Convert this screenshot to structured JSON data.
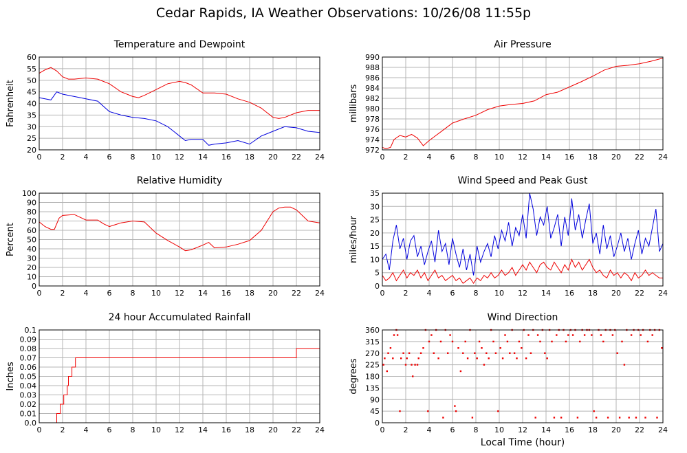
{
  "title": "Cedar Rapids, IA Weather Observations: 10/26/08 11:55p",
  "colors": {
    "red": "#ee0000",
    "blue": "#0000dd",
    "grid": "#b4b4b4"
  },
  "chart_data": [
    {
      "type": "line",
      "title": "Temperature and Dewpoint",
      "ylabel": "Fahrenheit",
      "xlim": [
        0,
        24
      ],
      "ylim": [
        20,
        60
      ],
      "xticks": [
        0,
        2,
        4,
        6,
        8,
        10,
        12,
        14,
        16,
        18,
        20,
        22,
        24
      ],
      "yticks": [
        20,
        25,
        30,
        35,
        40,
        45,
        50,
        55,
        60
      ],
      "grid": true,
      "series": [
        {
          "color": "#ee0000",
          "x": [
            0,
            0.5,
            1,
            1.5,
            2,
            2.5,
            3,
            4,
            5,
            6,
            7,
            8,
            8.5,
            9,
            10,
            11,
            12,
            12.5,
            13,
            14,
            15,
            16,
            17,
            18,
            19,
            20,
            20.5,
            21,
            22,
            23,
            24
          ],
          "y": [
            53,
            54.5,
            55.5,
            54,
            51.5,
            50.5,
            50.5,
            51,
            50.5,
            48.5,
            45,
            43,
            42.5,
            43.5,
            46,
            48.5,
            49.5,
            49,
            48,
            44.5,
            44.5,
            44,
            42,
            40.5,
            38,
            34,
            33.5,
            34,
            36,
            37,
            37
          ]
        },
        {
          "color": "#0000dd",
          "x": [
            0,
            0.5,
            1,
            1.5,
            2,
            3,
            4,
            5,
            6,
            7,
            8,
            9,
            10,
            11,
            11.5,
            12,
            12.5,
            13,
            14,
            14.5,
            15,
            16,
            17,
            18,
            19,
            20,
            21,
            22,
            23,
            24
          ],
          "y": [
            42.5,
            42,
            41.5,
            45,
            44,
            43,
            42,
            41,
            36.5,
            35,
            34,
            33.5,
            32.5,
            30,
            28,
            26,
            24,
            24.5,
            24.5,
            22,
            22.5,
            23,
            24,
            22.5,
            26,
            28,
            30,
            29.5,
            28,
            27.5
          ]
        }
      ]
    },
    {
      "type": "line",
      "title": "Air Pressure",
      "ylabel": "millibars",
      "xlim": [
        0,
        24
      ],
      "ylim": [
        972,
        990
      ],
      "xticks": [
        0,
        2,
        4,
        6,
        8,
        10,
        12,
        14,
        16,
        18,
        20,
        22,
        24
      ],
      "yticks": [
        972,
        974,
        976,
        978,
        980,
        982,
        984,
        986,
        988,
        990
      ],
      "grid": true,
      "series": [
        {
          "color": "#ee0000",
          "x": [
            0,
            0.3,
            0.7,
            1,
            1.5,
            2,
            2.5,
            3,
            3.5,
            4,
            5,
            6,
            7,
            8,
            9,
            10,
            11,
            12,
            13,
            14,
            15,
            16,
            17,
            18,
            19,
            20,
            21,
            22,
            23,
            24
          ],
          "y": [
            972.5,
            972.2,
            972.5,
            974,
            974.8,
            974.5,
            975,
            974.3,
            972.8,
            973.8,
            975.5,
            977.2,
            978,
            978.7,
            979.8,
            980.5,
            980.8,
            981,
            981.5,
            982.7,
            983.2,
            984.2,
            985.2,
            986.3,
            987.5,
            988.2,
            988.4,
            988.7,
            989.2,
            989.8
          ]
        }
      ]
    },
    {
      "type": "line",
      "title": "Relative Humidity",
      "ylabel": "Percent",
      "xlim": [
        0,
        24
      ],
      "ylim": [
        0,
        100
      ],
      "xticks": [
        0,
        2,
        4,
        6,
        8,
        10,
        12,
        14,
        16,
        18,
        20,
        22,
        24
      ],
      "yticks": [
        0,
        10,
        20,
        30,
        40,
        50,
        60,
        70,
        80,
        90,
        100
      ],
      "grid": true,
      "series": [
        {
          "color": "#ee0000",
          "x": [
            0,
            0.5,
            1,
            1.3,
            1.7,
            2,
            3,
            4,
            5,
            5.5,
            6,
            6.5,
            7,
            8,
            9,
            10,
            11,
            12,
            12.5,
            13,
            14,
            14.5,
            15,
            16,
            17,
            18,
            19,
            20,
            20.5,
            21,
            21.5,
            22,
            23,
            24
          ],
          "y": [
            69,
            64,
            61,
            61,
            73,
            76,
            77,
            71,
            71,
            67,
            64,
            66,
            68,
            70,
            69,
            57,
            49,
            42,
            38,
            39,
            44,
            47,
            41,
            42,
            45,
            49,
            60,
            80,
            84,
            85,
            85,
            82,
            70,
            68
          ]
        }
      ]
    },
    {
      "type": "line",
      "title": "Wind Speed and Peak Gust",
      "ylabel": "miles/hour",
      "xlim": [
        0,
        24
      ],
      "ylim": [
        0,
        35
      ],
      "xticks": [
        0,
        2,
        4,
        6,
        8,
        10,
        12,
        14,
        16,
        18,
        20,
        22,
        24
      ],
      "yticks": [
        0,
        5,
        10,
        15,
        20,
        25,
        30,
        35
      ],
      "grid": true,
      "series": [
        {
          "color": "#0000dd",
          "x": [
            0,
            0.3,
            0.6,
            0.9,
            1.2,
            1.5,
            1.8,
            2.1,
            2.4,
            2.7,
            3,
            3.3,
            3.6,
            3.9,
            4.2,
            4.5,
            4.8,
            5.1,
            5.4,
            5.7,
            6,
            6.3,
            6.6,
            6.9,
            7.2,
            7.5,
            7.8,
            8.1,
            8.4,
            8.7,
            9,
            9.3,
            9.6,
            9.9,
            10.2,
            10.5,
            10.8,
            11.1,
            11.4,
            11.7,
            12,
            12.3,
            12.6,
            12.9,
            13.2,
            13.5,
            13.8,
            14.1,
            14.4,
            14.7,
            15,
            15.3,
            15.6,
            15.9,
            16.2,
            16.5,
            16.8,
            17.1,
            17.4,
            17.7,
            18,
            18.3,
            18.6,
            18.9,
            19.2,
            19.5,
            19.8,
            20.1,
            20.4,
            20.7,
            21,
            21.3,
            21.6,
            21.9,
            22.2,
            22.5,
            22.8,
            23.1,
            23.4,
            23.7,
            24
          ],
          "y": [
            10,
            12,
            6,
            17,
            23,
            14,
            18,
            10,
            17,
            19,
            11,
            15,
            8,
            13,
            17,
            9,
            21,
            13,
            16,
            8,
            18,
            12,
            7,
            14,
            6,
            12,
            4,
            15,
            9,
            13,
            16,
            11,
            19,
            14,
            21,
            17,
            24,
            15,
            22,
            19,
            27,
            18,
            35,
            29,
            19,
            26,
            23,
            30,
            18,
            22,
            27,
            15,
            26,
            19,
            33,
            21,
            27,
            18,
            25,
            31,
            16,
            20,
            12,
            23,
            14,
            19,
            11,
            15,
            20,
            13,
            18,
            10,
            16,
            21,
            12,
            18,
            15,
            22,
            29,
            13,
            16
          ]
        },
        {
          "color": "#ee0000",
          "x": [
            0,
            0.3,
            0.6,
            0.9,
            1.2,
            1.5,
            1.8,
            2.1,
            2.4,
            2.7,
            3,
            3.3,
            3.6,
            3.9,
            4.2,
            4.5,
            4.8,
            5.1,
            5.4,
            5.7,
            6,
            6.3,
            6.6,
            6.9,
            7.2,
            7.5,
            7.8,
            8.1,
            8.4,
            8.7,
            9,
            9.3,
            9.6,
            9.9,
            10.2,
            10.5,
            10.8,
            11.1,
            11.4,
            11.7,
            12,
            12.3,
            12.6,
            12.9,
            13.2,
            13.5,
            13.8,
            14.1,
            14.4,
            14.7,
            15,
            15.3,
            15.6,
            15.9,
            16.2,
            16.5,
            16.8,
            17.1,
            17.4,
            17.7,
            18,
            18.3,
            18.6,
            18.9,
            19.2,
            19.5,
            19.8,
            20.1,
            20.4,
            20.7,
            21,
            21.3,
            21.6,
            21.9,
            22.2,
            22.5,
            22.8,
            23.1,
            23.4,
            23.7,
            24
          ],
          "y": [
            4,
            2,
            3,
            5,
            2,
            4,
            6,
            3,
            5,
            4,
            6,
            3,
            5,
            2,
            4,
            6,
            3,
            4,
            2,
            3,
            4,
            2,
            3,
            1,
            2,
            3,
            1,
            3,
            2,
            4,
            3,
            5,
            3,
            4,
            6,
            4,
            5,
            7,
            4,
            6,
            8,
            6,
            9,
            7,
            5,
            8,
            9,
            7,
            6,
            9,
            7,
            5,
            8,
            6,
            10,
            7,
            9,
            6,
            8,
            10,
            7,
            5,
            6,
            4,
            3,
            6,
            4,
            5,
            3,
            5,
            4,
            2,
            5,
            3,
            4,
            6,
            4,
            5,
            4,
            3,
            3
          ]
        }
      ]
    },
    {
      "type": "line",
      "title": "24 hour Accumulated Rainfall",
      "ylabel": "Inches",
      "xlim": [
        0,
        24
      ],
      "ylim": [
        0,
        0.1
      ],
      "xticks": [
        0,
        2,
        4,
        6,
        8,
        10,
        12,
        14,
        16,
        18,
        20,
        22,
        24
      ],
      "yticks": [
        0.0,
        0.01,
        0.02,
        0.03,
        0.04,
        0.05,
        0.06,
        0.07,
        0.08,
        0.09,
        0.1
      ],
      "ytick_labels": [
        "0.0",
        "0.01",
        "0.02",
        "0.03",
        "0.04",
        "0.05",
        "0.06",
        "0.07",
        "0.08",
        "0.09",
        "0.1"
      ],
      "grid": true,
      "step": true,
      "series": [
        {
          "color": "#ee0000",
          "x": [
            0,
            1.4,
            1.5,
            1.7,
            1.8,
            2.0,
            2.1,
            2.3,
            2.4,
            2.5,
            2.7,
            2.8,
            3.0,
            3.1,
            22.0,
            24
          ],
          "y": [
            0,
            0,
            0.01,
            0.01,
            0.02,
            0.02,
            0.03,
            0.03,
            0.04,
            0.05,
            0.05,
            0.06,
            0.06,
            0.07,
            0.08,
            0.08
          ]
        }
      ]
    },
    {
      "type": "scatter",
      "title": "Wind Direction",
      "ylabel": "degrees",
      "xlabel": "Local Time (hour)",
      "xlim": [
        0,
        24
      ],
      "ylim": [
        0,
        360
      ],
      "xticks": [
        0,
        2,
        4,
        6,
        8,
        10,
        12,
        14,
        16,
        18,
        20,
        22,
        24
      ],
      "yticks": [
        0,
        45,
        90,
        135,
        180,
        225,
        270,
        315,
        360
      ],
      "grid": true,
      "series": [
        {
          "color": "#ee0000",
          "x": [
            0.1,
            0.2,
            0.4,
            0.5,
            0.7,
            0.9,
            1.0,
            1.2,
            1.3,
            1.5,
            1.6,
            1.8,
            2.0,
            2.1,
            2.3,
            2.5,
            2.6,
            2.8,
            3.0,
            3.1,
            3.3,
            3.5,
            3.7,
            3.9,
            4.0,
            4.2,
            4.4,
            4.6,
            4.8,
            5.0,
            5.2,
            5.4,
            5.6,
            5.8,
            6.0,
            6.2,
            6.3,
            6.5,
            6.7,
            6.9,
            7.1,
            7.3,
            7.5,
            7.7,
            7.9,
            8.1,
            8.3,
            8.5,
            8.7,
            8.9,
            9.1,
            9.3,
            9.5,
            9.7,
            9.9,
            10.1,
            10.3,
            10.5,
            10.7,
            10.9,
            11.1,
            11.3,
            11.5,
            11.7,
            11.9,
            12.1,
            12.3,
            12.5,
            12.7,
            12.9,
            13.1,
            13.3,
            13.5,
            13.7,
            13.9,
            14.1,
            14.3,
            14.5,
            14.7,
            14.9,
            15.1,
            15.3,
            15.5,
            15.7,
            15.9,
            16.1,
            16.3,
            16.5,
            16.7,
            16.9,
            17.1,
            17.3,
            17.5,
            17.7,
            17.9,
            18.1,
            18.3,
            18.5,
            18.7,
            18.9,
            19.1,
            19.3,
            19.5,
            19.7,
            19.9,
            20.1,
            20.3,
            20.5,
            20.7,
            20.9,
            21.1,
            21.3,
            21.5,
            21.7,
            21.9,
            22.1,
            22.3,
            22.5,
            22.7,
            22.9,
            23.1,
            23.3,
            23.5,
            23.7,
            23.9
          ],
          "y": [
            225,
            250,
            200,
            270,
            290,
            250,
            340,
            360,
            340,
            45,
            250,
            270,
            225,
            250,
            270,
            225,
            180,
            225,
            225,
            250,
            270,
            290,
            360,
            45,
            315,
            340,
            270,
            360,
            250,
            315,
            20,
            360,
            270,
            340,
            315,
            65,
            45,
            290,
            200,
            270,
            315,
            250,
            360,
            20,
            270,
            250,
            315,
            290,
            225,
            270,
            250,
            360,
            315,
            270,
            45,
            290,
            250,
            340,
            315,
            270,
            360,
            270,
            250,
            315,
            290,
            360,
            250,
            340,
            270,
            360,
            20,
            340,
            315,
            360,
            270,
            250,
            360,
            315,
            20,
            340,
            360,
            20,
            360,
            315,
            340,
            360,
            340,
            360,
            20,
            315,
            360,
            340,
            360,
            360,
            340,
            45,
            20,
            360,
            340,
            315,
            360,
            20,
            360,
            340,
            360,
            270,
            20,
            315,
            225,
            360,
            20,
            340,
            360,
            20,
            360,
            340,
            360,
            20,
            315,
            360,
            340,
            360,
            20,
            360,
            290
          ]
        }
      ]
    }
  ]
}
